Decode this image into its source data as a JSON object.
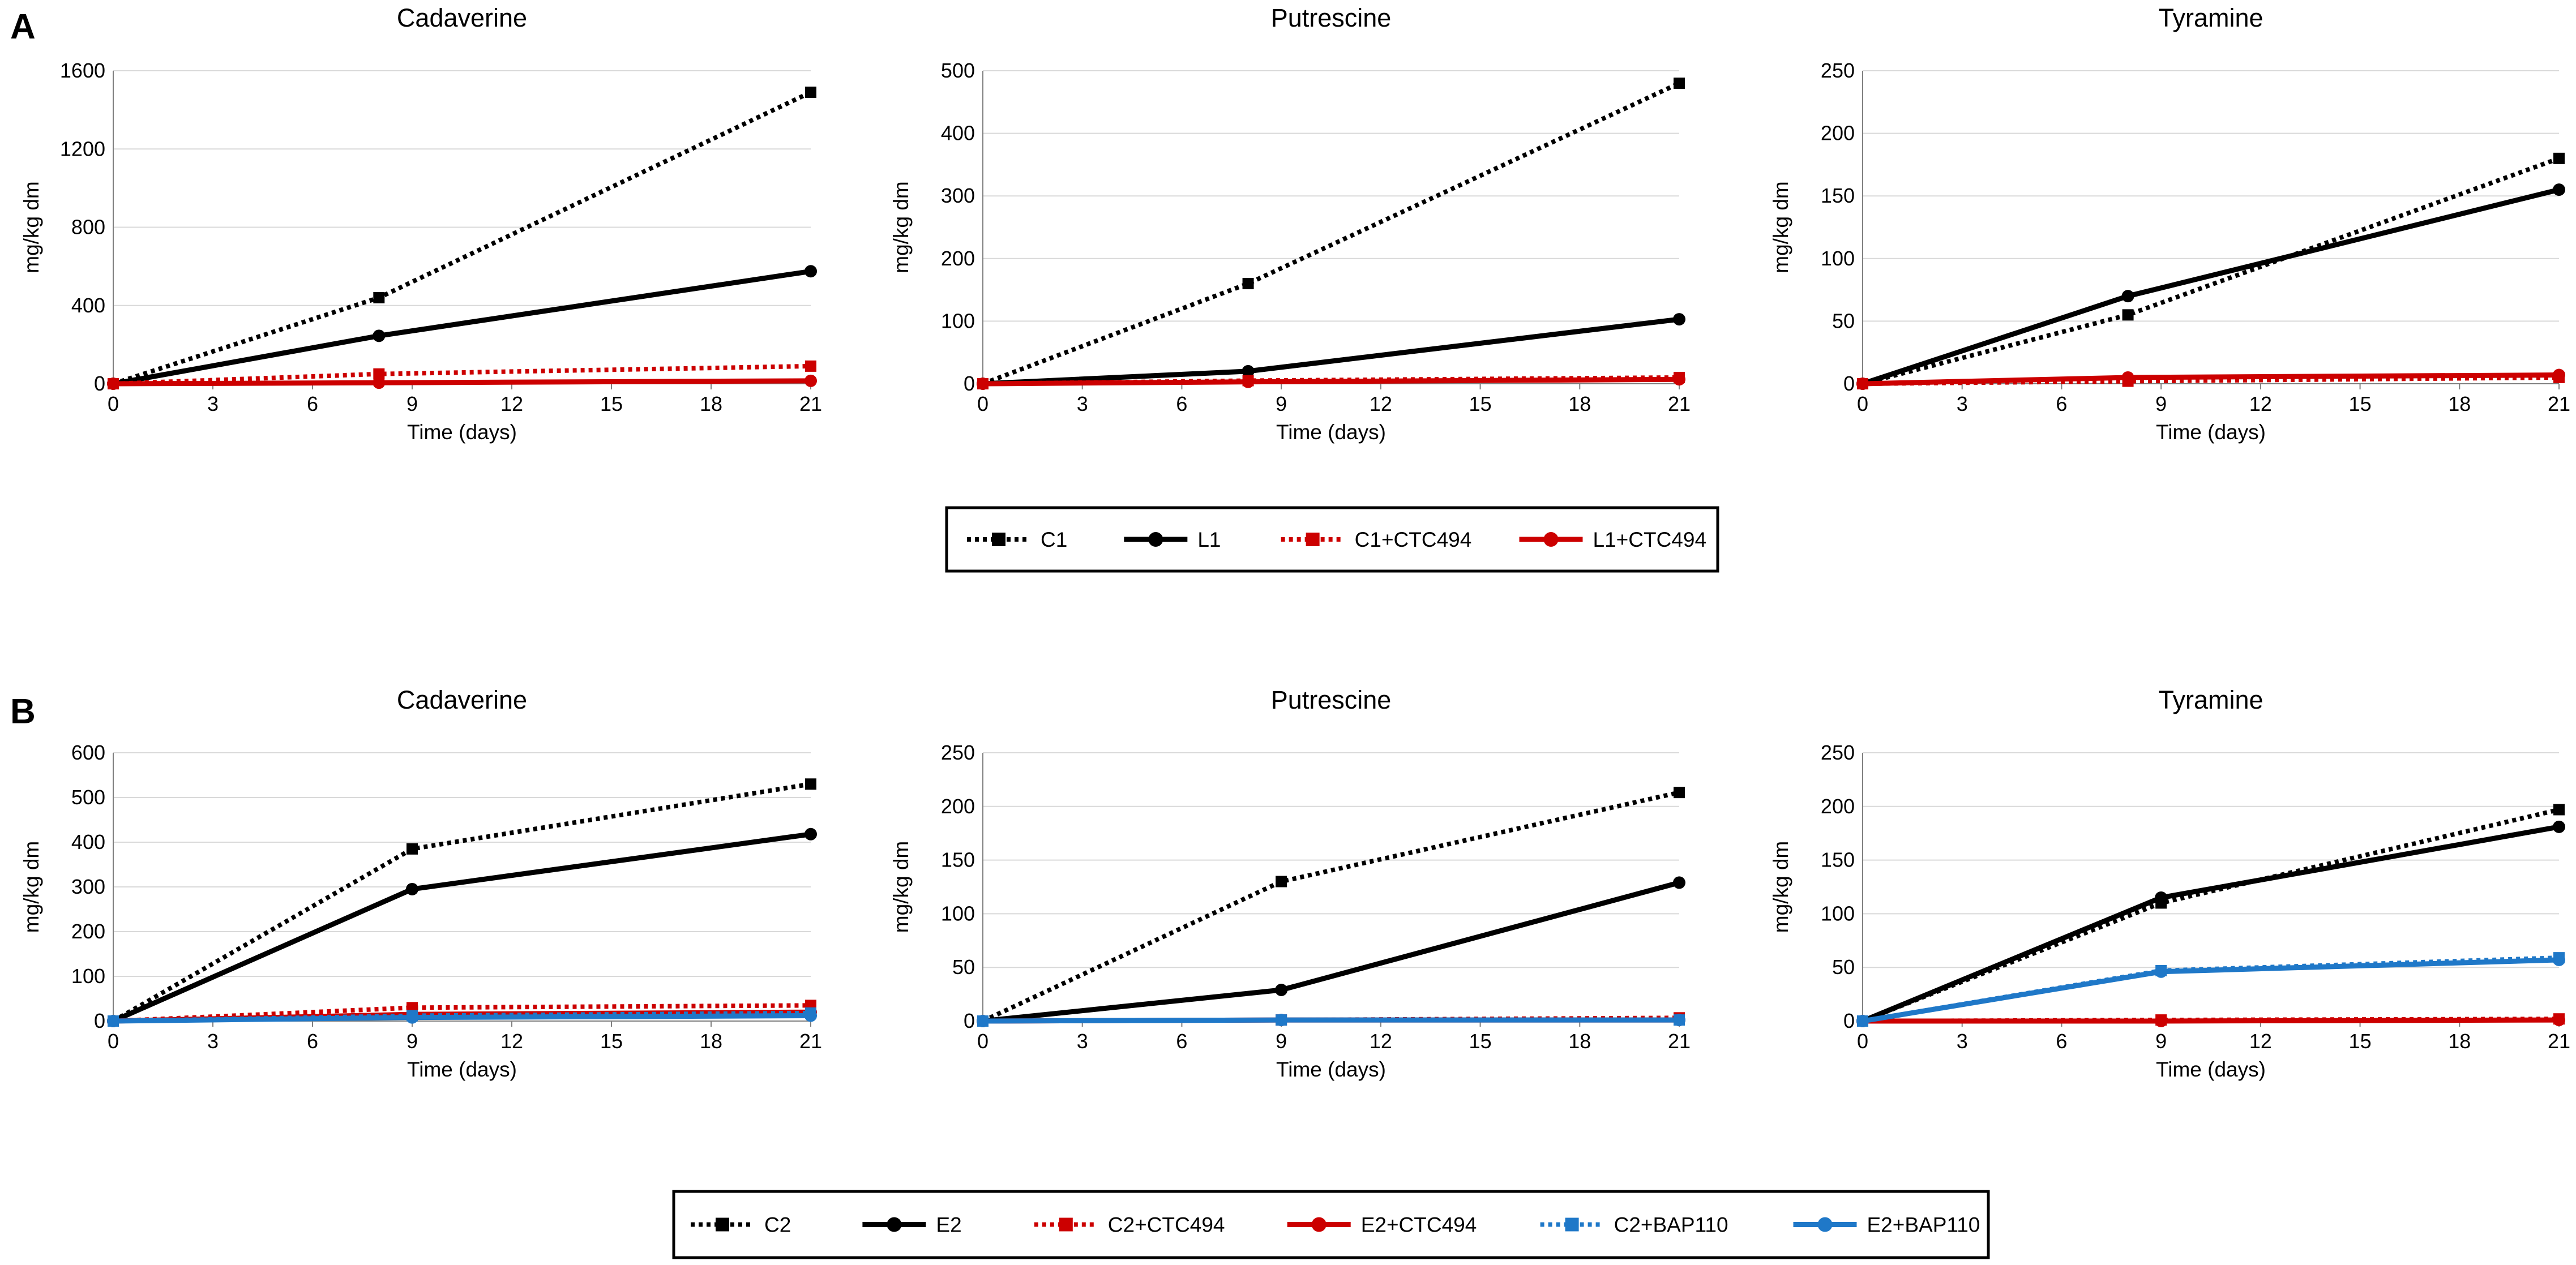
{
  "figure": {
    "panel_labels": [
      "A",
      "B"
    ],
    "legends": [
      {
        "items": [
          {
            "label": "C1",
            "color": "#000000",
            "dashed": true,
            "marker": "square"
          },
          {
            "label": "L1",
            "color": "#000000",
            "dashed": false,
            "marker": "circle"
          },
          {
            "label": "C1+CTC494",
            "color": "#cc0000",
            "dashed": true,
            "marker": "square"
          },
          {
            "label": "L1+CTC494",
            "color": "#cc0000",
            "dashed": false,
            "marker": "circle"
          }
        ]
      },
      {
        "items": [
          {
            "label": "C2",
            "color": "#000000",
            "dashed": true,
            "marker": "square"
          },
          {
            "label": "E2",
            "color": "#000000",
            "dashed": false,
            "marker": "circle"
          },
          {
            "label": "C2+CTC494",
            "color": "#cc0000",
            "dashed": true,
            "marker": "square"
          },
          {
            "label": "E2+CTC494",
            "color": "#cc0000",
            "dashed": false,
            "marker": "circle"
          },
          {
            "label": "C2+BAP110",
            "color": "#1f78c8",
            "dashed": true,
            "marker": "square"
          },
          {
            "label": "E2+BAP110",
            "color": "#1f78c8",
            "dashed": false,
            "marker": "circle"
          }
        ]
      }
    ]
  },
  "chart_data": [
    {
      "panel": "A",
      "type": "line",
      "title": "Cadaverine",
      "xlabel": "Time (days)",
      "ylabel": "mg/kg dm",
      "x": [
        0,
        8,
        21
      ],
      "xlim": [
        0,
        21
      ],
      "xticks": [
        0,
        3,
        6,
        9,
        12,
        15,
        18,
        21
      ],
      "ylim": [
        0,
        1600
      ],
      "yticks": [
        0,
        400,
        800,
        1200,
        1600
      ],
      "series": [
        {
          "name": "C1",
          "values": [
            0,
            440,
            1490
          ],
          "color": "#000000",
          "dashed": true,
          "marker": "square"
        },
        {
          "name": "L1",
          "values": [
            0,
            245,
            575
          ],
          "color": "#000000",
          "dashed": false,
          "marker": "circle"
        },
        {
          "name": "C1+CTC494",
          "values": [
            0,
            50,
            90
          ],
          "color": "#cc0000",
          "dashed": true,
          "marker": "square"
        },
        {
          "name": "L1+CTC494",
          "values": [
            0,
            5,
            15
          ],
          "color": "#cc0000",
          "dashed": false,
          "marker": "circle"
        }
      ]
    },
    {
      "panel": "A",
      "type": "line",
      "title": "Putrescine",
      "xlabel": "Time (days)",
      "ylabel": "mg/kg dm",
      "x": [
        0,
        8,
        21
      ],
      "xlim": [
        0,
        21
      ],
      "xticks": [
        0,
        3,
        6,
        9,
        12,
        15,
        18,
        21
      ],
      "ylim": [
        0,
        500
      ],
      "yticks": [
        0,
        100,
        200,
        300,
        400,
        500
      ],
      "series": [
        {
          "name": "C1",
          "values": [
            0,
            160,
            480
          ],
          "color": "#000000",
          "dashed": true,
          "marker": "square"
        },
        {
          "name": "L1",
          "values": [
            0,
            20,
            103
          ],
          "color": "#000000",
          "dashed": false,
          "marker": "circle"
        },
        {
          "name": "C1+CTC494",
          "values": [
            0,
            5,
            10
          ],
          "color": "#cc0000",
          "dashed": true,
          "marker": "square"
        },
        {
          "name": "L1+CTC494",
          "values": [
            0,
            3,
            7
          ],
          "color": "#cc0000",
          "dashed": false,
          "marker": "circle"
        }
      ]
    },
    {
      "panel": "A",
      "type": "line",
      "title": "Tyramine",
      "xlabel": "Time (days)",
      "ylabel": "mg/kg dm",
      "x": [
        0,
        8,
        21
      ],
      "xlim": [
        0,
        21
      ],
      "xticks": [
        0,
        3,
        6,
        9,
        12,
        15,
        18,
        21
      ],
      "ylim": [
        0,
        250
      ],
      "yticks": [
        0,
        50,
        100,
        150,
        200,
        250
      ],
      "series": [
        {
          "name": "C1",
          "values": [
            0,
            55,
            180
          ],
          "color": "#000000",
          "dashed": true,
          "marker": "square"
        },
        {
          "name": "L1",
          "values": [
            0,
            70,
            155
          ],
          "color": "#000000",
          "dashed": false,
          "marker": "circle"
        },
        {
          "name": "C1+CTC494",
          "values": [
            0,
            2,
            5
          ],
          "color": "#cc0000",
          "dashed": true,
          "marker": "square"
        },
        {
          "name": "L1+CTC494",
          "values": [
            0,
            5,
            7
          ],
          "color": "#cc0000",
          "dashed": false,
          "marker": "circle"
        }
      ]
    },
    {
      "panel": "B",
      "type": "line",
      "title": "Cadaverine",
      "xlabel": "Time (days)",
      "ylabel": "mg/kg dm",
      "x": [
        0,
        9,
        21
      ],
      "xlim": [
        0,
        21
      ],
      "xticks": [
        0,
        3,
        6,
        9,
        12,
        15,
        18,
        21
      ],
      "ylim": [
        0,
        600
      ],
      "yticks": [
        0,
        100,
        200,
        300,
        400,
        500,
        600
      ],
      "series": [
        {
          "name": "C2",
          "values": [
            0,
            385,
            530
          ],
          "color": "#000000",
          "dashed": true,
          "marker": "square"
        },
        {
          "name": "E2",
          "values": [
            0,
            295,
            418
          ],
          "color": "#000000",
          "dashed": false,
          "marker": "circle"
        },
        {
          "name": "C2+CTC494",
          "values": [
            0,
            30,
            35
          ],
          "color": "#cc0000",
          "dashed": true,
          "marker": "square"
        },
        {
          "name": "E2+CTC494",
          "values": [
            0,
            15,
            20
          ],
          "color": "#cc0000",
          "dashed": false,
          "marker": "circle"
        },
        {
          "name": "C2+BAP110",
          "values": [
            0,
            12,
            18
          ],
          "color": "#1f78c8",
          "dashed": true,
          "marker": "square"
        },
        {
          "name": "E2+BAP110",
          "values": [
            0,
            8,
            12
          ],
          "color": "#1f78c8",
          "dashed": false,
          "marker": "circle"
        }
      ]
    },
    {
      "panel": "B",
      "type": "line",
      "title": "Putrescine",
      "xlabel": "Time (days)",
      "ylabel": "mg/kg dm",
      "x": [
        0,
        9,
        21
      ],
      "xlim": [
        0,
        21
      ],
      "xticks": [
        0,
        3,
        6,
        9,
        12,
        15,
        18,
        21
      ],
      "ylim": [
        0,
        250
      ],
      "yticks": [
        0,
        50,
        100,
        150,
        200,
        250
      ],
      "series": [
        {
          "name": "C2",
          "values": [
            0,
            130,
            213
          ],
          "color": "#000000",
          "dashed": true,
          "marker": "square"
        },
        {
          "name": "E2",
          "values": [
            0,
            29,
            129
          ],
          "color": "#000000",
          "dashed": false,
          "marker": "circle"
        },
        {
          "name": "C2+CTC494",
          "values": [
            0,
            1,
            3
          ],
          "color": "#cc0000",
          "dashed": true,
          "marker": "square"
        },
        {
          "name": "E2+CTC494",
          "values": [
            0,
            1,
            1
          ],
          "color": "#cc0000",
          "dashed": false,
          "marker": "circle"
        },
        {
          "name": "C2+BAP110",
          "values": [
            0,
            1,
            1
          ],
          "color": "#1f78c8",
          "dashed": true,
          "marker": "square"
        },
        {
          "name": "E2+BAP110",
          "values": [
            0,
            1,
            1
          ],
          "color": "#1f78c8",
          "dashed": false,
          "marker": "circle"
        }
      ]
    },
    {
      "panel": "B",
      "type": "line",
      "title": "Tyramine",
      "xlabel": "Time (days)",
      "ylabel": "mg/kg dm",
      "x": [
        0,
        9,
        21
      ],
      "xlim": [
        0,
        21
      ],
      "xticks": [
        0,
        3,
        6,
        9,
        12,
        15,
        18,
        21
      ],
      "ylim": [
        0,
        250
      ],
      "yticks": [
        0,
        50,
        100,
        150,
        200,
        250
      ],
      "series": [
        {
          "name": "C2",
          "values": [
            0,
            110,
            197
          ],
          "color": "#000000",
          "dashed": true,
          "marker": "square"
        },
        {
          "name": "E2",
          "values": [
            0,
            115,
            181
          ],
          "color": "#000000",
          "dashed": false,
          "marker": "circle"
        },
        {
          "name": "C2+CTC494",
          "values": [
            0,
            1,
            2
          ],
          "color": "#cc0000",
          "dashed": true,
          "marker": "square"
        },
        {
          "name": "E2+CTC494",
          "values": [
            0,
            0,
            1
          ],
          "color": "#cc0000",
          "dashed": false,
          "marker": "circle"
        },
        {
          "name": "C2+BAP110",
          "values": [
            0,
            47,
            59
          ],
          "color": "#1f78c8",
          "dashed": true,
          "marker": "square"
        },
        {
          "name": "E2+BAP110",
          "values": [
            0,
            46,
            57
          ],
          "color": "#1f78c8",
          "dashed": false,
          "marker": "circle"
        }
      ]
    }
  ]
}
